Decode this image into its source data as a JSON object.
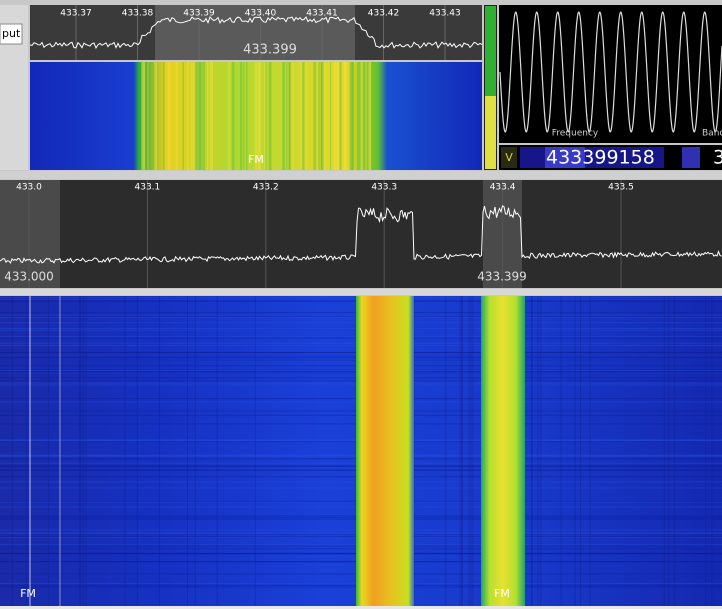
{
  "left_panel": {
    "label": "put"
  },
  "top_spectrum": {
    "ticks": [
      "433.37",
      "433.38",
      "433.39",
      "433.40",
      "433.41",
      "433.42",
      "433.43"
    ],
    "center_label": "433.399"
  },
  "top_waterfall": {
    "mode": "FM"
  },
  "scope": {
    "labels": [
      "Frequency",
      "Banc"
    ]
  },
  "frequency_display": {
    "mode": "V",
    "value": "433399158",
    "extra": "3"
  },
  "main_spectrum": {
    "ticks": [
      "433.0",
      "433.1",
      "433.2",
      "433.3",
      "433.4",
      "433.5"
    ],
    "markers": [
      "433.000",
      "433.399"
    ]
  },
  "main_waterfall": {
    "modes": [
      "FM",
      "FM"
    ]
  }
}
